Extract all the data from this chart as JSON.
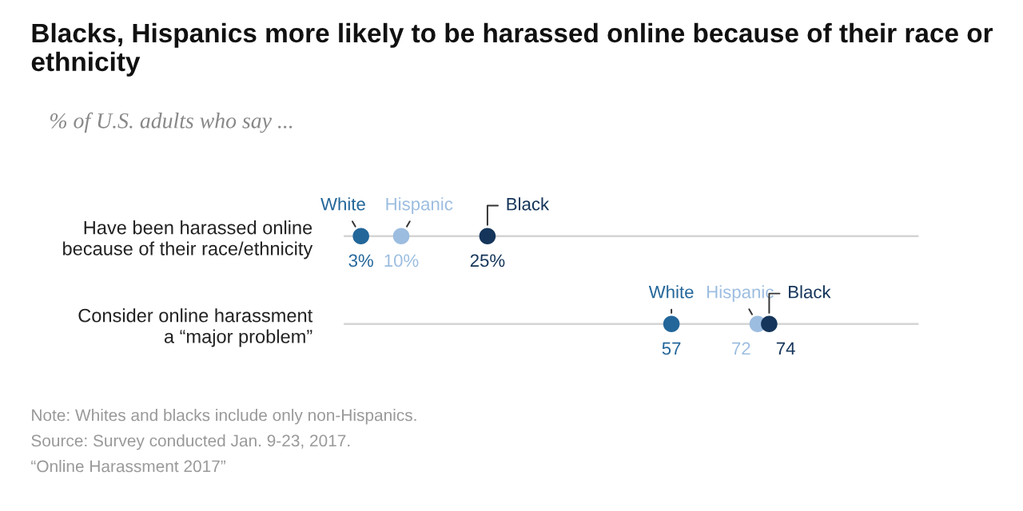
{
  "chart_data": {
    "type": "scatter",
    "orientation": "horizontal",
    "title": "Blacks, Hispanics more likely to be harassed online because of their race or ethnicity",
    "subtitle": "% of U.S. adults who say ...",
    "categories": [
      "Have been harassed online because of their race/ethnicity",
      "Consider online harassment a “major problem”"
    ],
    "series": [
      {
        "name": "White",
        "color": "#23669a",
        "values": [
          3,
          57
        ],
        "value_labels": [
          "3%",
          "57"
        ]
      },
      {
        "name": "Hispanic",
        "color": "#9cbde0",
        "values": [
          10,
          72
        ],
        "value_labels": [
          "10%",
          "72"
        ]
      },
      {
        "name": "Black",
        "color": "#15355a",
        "values": [
          25,
          74
        ],
        "value_labels": [
          "25%",
          "74"
        ]
      }
    ],
    "xlim": [
      0,
      100
    ],
    "tick_labels": "y",
    "grid": "y",
    "marker": "circle",
    "legend": false,
    "annotations": [
      "Note: Whites and blacks include only non-Hispanics.",
      "Source: Survey conducted Jan. 9-23, 2017.",
      "“Online Harassment 2017”"
    ]
  }
}
